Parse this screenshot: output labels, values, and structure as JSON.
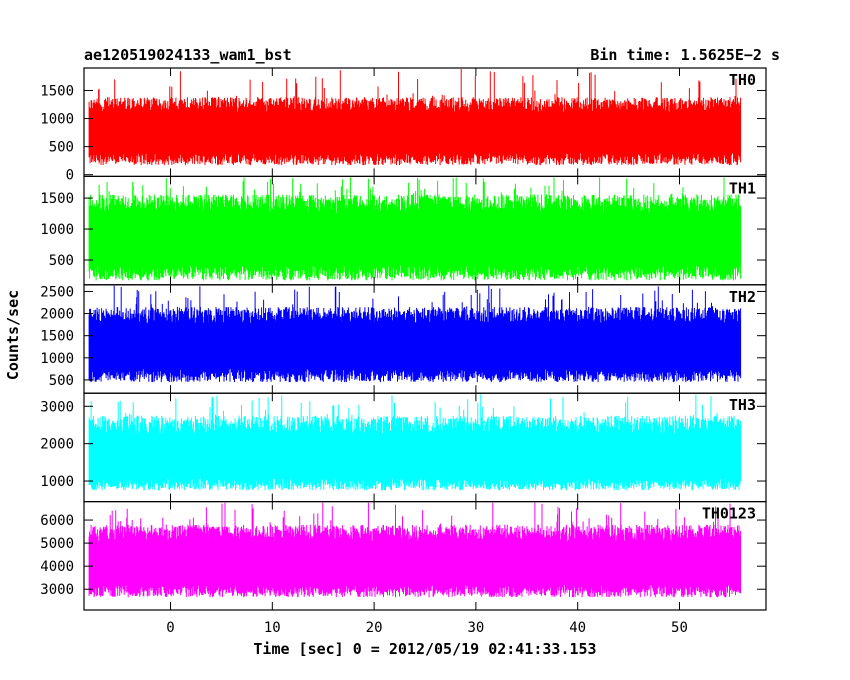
{
  "title_left": "ae120519024133_wam1_bst",
  "title_right": "Bin time: 1.5625E−2 s",
  "chart_data": [
    {
      "type": "line",
      "name": "TH0",
      "color": "#ff0000",
      "ylim": [
        -30,
        1900
      ],
      "yticks": [
        0,
        500,
        1000,
        1500
      ],
      "level": [
        170,
        790,
        1380
      ],
      "spike_max": 1900
    },
    {
      "type": "line",
      "name": "TH1",
      "color": "#00ff00",
      "ylim": [
        100,
        1850
      ],
      "yticks": [
        500,
        1000,
        1500
      ],
      "level": [
        170,
        880,
        1560
      ],
      "spike_max": 1850
    },
    {
      "type": "line",
      "name": "TH2",
      "color": "#0000ff",
      "ylim": [
        200,
        2650
      ],
      "yticks": [
        500,
        1000,
        1500,
        2000,
        2500
      ],
      "level": [
        450,
        1310,
        2150
      ],
      "spike_max": 2650
    },
    {
      "type": "line",
      "name": "TH3",
      "color": "#00ffff",
      "ylim": [
        450,
        3350
      ],
      "yticks": [
        1000,
        2000,
        3000
      ],
      "level": [
        750,
        1680,
        2750
      ],
      "spike_max": 3350
    },
    {
      "type": "line",
      "name": "TH0123",
      "color": "#ff00ff",
      "ylim": [
        2100,
        6800
      ],
      "yticks": [
        3000,
        4000,
        5000,
        6000
      ],
      "level": [
        2650,
        4200,
        5800
      ],
      "spike_max": 6800
    }
  ],
  "x_axis": {
    "label": "Time [sec] 0 = 2012/05/19 02:41:33.153",
    "xlim": [
      -8.5,
      58.5
    ],
    "data_range": [
      -8,
      56
    ],
    "ticks": [
      0,
      10,
      20,
      30,
      40,
      50
    ]
  },
  "y_axis_label": "Counts/sec"
}
